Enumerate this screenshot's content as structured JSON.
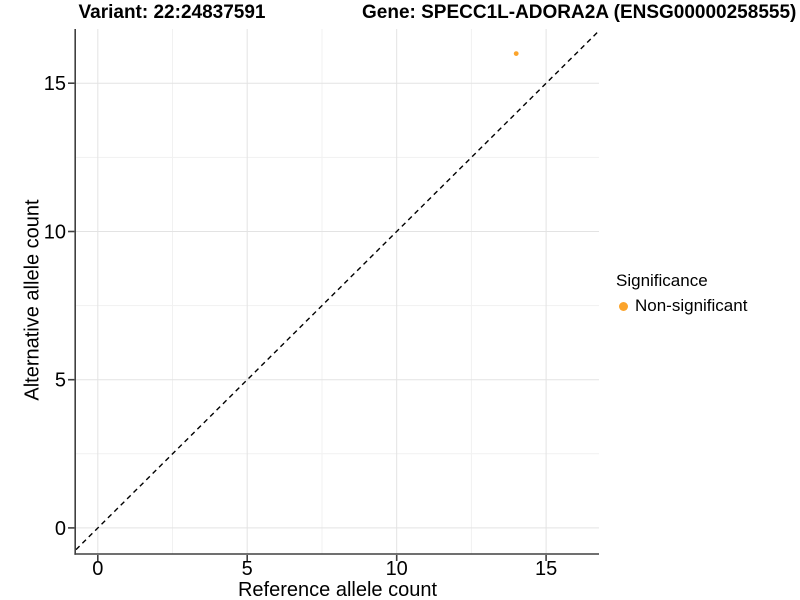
{
  "header": {
    "variant_title": "Variant: 22:24837591",
    "gene_title": "Gene: SPECC1L-ADORA2A (ENSG00000258555)"
  },
  "legend": {
    "title": "Significance",
    "items": [
      {
        "label": "Non-significant",
        "color": "#FBA42C"
      }
    ]
  },
  "colors": {
    "point": "#FBA42C",
    "axis": "#404040",
    "grid_major": "#e3e3e3",
    "grid_minor": "#f1f1f1",
    "text": "#000000",
    "reference_line": "#000000",
    "background": "#ffffff"
  },
  "chart_data": {
    "type": "scatter",
    "title": "Variant: 22:24837591 | Gene: SPECC1L-ADORA2A (ENSG00000258555)",
    "xlabel": "Reference allele count",
    "ylabel": "Alternative allele count",
    "xlim": [
      -0.73,
      16.77
    ],
    "ylim": [
      -0.88,
      16.83
    ],
    "x_ticks": [
      0,
      5,
      10,
      15
    ],
    "y_ticks": [
      0,
      5,
      10,
      15
    ],
    "x_minor": [
      2.5,
      7.5,
      12.5
    ],
    "y_minor": [
      2.5,
      7.5,
      12.5
    ],
    "grid": true,
    "legend_position": "right",
    "series": [
      {
        "name": "Non-significant",
        "color": "#FBA42C",
        "points": [
          {
            "x": 14,
            "y": 16
          }
        ]
      }
    ],
    "reference_line": {
      "type": "identity",
      "slope": 1,
      "intercept": 0,
      "style": "dashed",
      "color": "#000000"
    }
  }
}
